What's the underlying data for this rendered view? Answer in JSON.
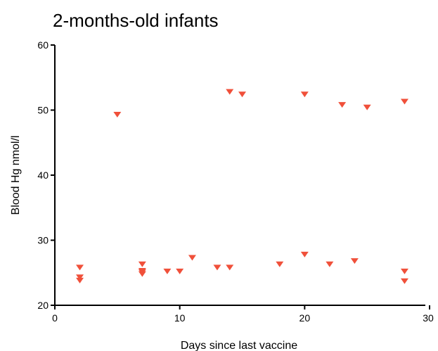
{
  "chart_data": {
    "type": "scatter",
    "title": "2-months-old infants",
    "xlabel": "Days since last vaccine",
    "ylabel": "Blood Hg nmol/l",
    "xlim": [
      0,
      30
    ],
    "ylim": [
      20,
      60
    ],
    "xticks": [
      "0",
      "10",
      "20",
      "30"
    ],
    "yticks": [
      "20",
      "30",
      "40",
      "50",
      "60"
    ],
    "marker": "triangle-down",
    "marker_color": "#f0503a",
    "grid": false,
    "x": [
      2,
      2,
      2,
      5,
      7,
      7,
      7,
      7,
      9,
      10,
      11,
      13,
      14,
      14,
      15,
      18,
      20,
      20,
      22,
      23,
      24,
      25,
      28,
      28,
      28
    ],
    "y": [
      25.8,
      24.3,
      23.8,
      49.3,
      26.3,
      25.3,
      25.1,
      24.8,
      25.2,
      25.2,
      27.3,
      25.8,
      25.8,
      52.8,
      52.4,
      26.3,
      27.8,
      52.4,
      26.3,
      50.8,
      26.8,
      50.4,
      25.2,
      23.7,
      51.3
    ]
  }
}
